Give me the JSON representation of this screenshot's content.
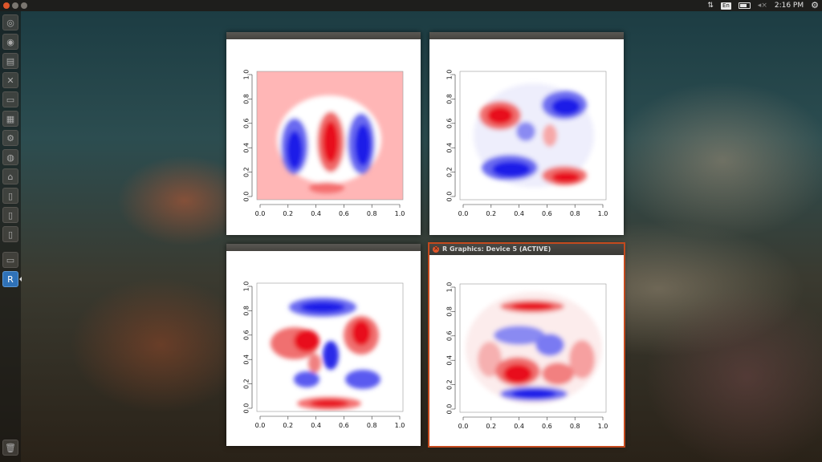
{
  "top_panel": {
    "keyboard_layout": "En",
    "volume_icon": "◂×",
    "clock": "2:16 PM",
    "icons": [
      "network-arrows-icon",
      "keyboard-icon",
      "battery-icon",
      "volume-muted-icon",
      "settings-gear-icon"
    ]
  },
  "launcher": {
    "icons": [
      "dash-icon",
      "firefox-icon",
      "files-icon",
      "system-tools-icon",
      "terminal-monitor-icon",
      "archive-icon",
      "settings-icon",
      "ubuntu-one-icon",
      "home-folder-icon",
      "document-icon",
      "document-icon",
      "document-icon",
      "terminal-icon",
      "r-app-icon",
      "trash-icon"
    ]
  },
  "windows": [
    {
      "title": "",
      "active": false
    },
    {
      "title": "",
      "active": false
    },
    {
      "title": "",
      "active": false
    },
    {
      "title": "R Graphics: Device 5 (ACTIVE)",
      "active": true
    }
  ],
  "plot_axes": {
    "x_ticks": [
      "0.0",
      "0.2",
      "0.4",
      "0.6",
      "0.8",
      "1.0"
    ],
    "y_ticks": [
      "0.0",
      "0.2",
      "0.4",
      "0.6",
      "0.8",
      "1.0"
    ]
  },
  "colors": {
    "heat_red": "#e8101a",
    "heat_blue": "#1a1ae8",
    "active_border": "#c44a1e"
  }
}
